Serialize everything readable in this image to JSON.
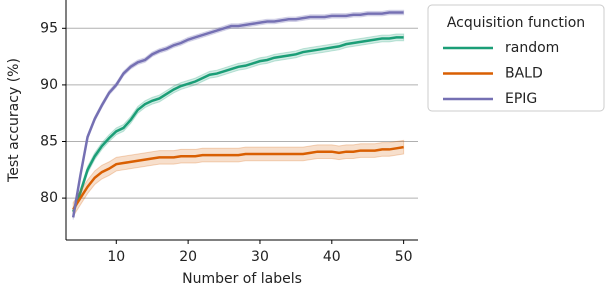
{
  "chart_data": {
    "type": "line",
    "xlabel": "Number of labels",
    "ylabel": "Test accuracy (%)",
    "legend_title": "Acquisition function",
    "legend": "outside-right",
    "grid": "y",
    "x": [
      4,
      5,
      6,
      7,
      8,
      9,
      10,
      11,
      12,
      13,
      14,
      15,
      16,
      17,
      18,
      19,
      20,
      21,
      22,
      23,
      24,
      25,
      26,
      27,
      28,
      29,
      30,
      31,
      32,
      33,
      34,
      35,
      36,
      37,
      38,
      39,
      40,
      41,
      42,
      43,
      44,
      45,
      46,
      47,
      48,
      49,
      50
    ],
    "xlim": [
      3,
      52
    ],
    "xticks": [
      10,
      20,
      30,
      40,
      50
    ],
    "ylim": [
      76.3,
      97.5
    ],
    "yticks": [
      80,
      85,
      90,
      95
    ],
    "series": [
      {
        "name": "random",
        "color": "#1b9e77",
        "error": 0.3,
        "values": [
          78.8,
          80.5,
          82.5,
          83.7,
          84.6,
          85.3,
          85.9,
          86.2,
          86.9,
          87.8,
          88.3,
          88.6,
          88.8,
          89.2,
          89.6,
          89.9,
          90.1,
          90.3,
          90.6,
          90.9,
          91.0,
          91.2,
          91.4,
          91.6,
          91.7,
          91.9,
          92.1,
          92.2,
          92.4,
          92.5,
          92.6,
          92.7,
          92.9,
          93.0,
          93.1,
          93.2,
          93.3,
          93.4,
          93.6,
          93.7,
          93.8,
          93.9,
          94.0,
          94.1,
          94.1,
          94.2,
          94.2
        ]
      },
      {
        "name": "BALD",
        "color": "#d95f02",
        "error": 0.6,
        "values": [
          79.0,
          80.0,
          81.0,
          81.8,
          82.3,
          82.6,
          83.0,
          83.1,
          83.2,
          83.3,
          83.4,
          83.5,
          83.6,
          83.6,
          83.6,
          83.7,
          83.7,
          83.7,
          83.8,
          83.8,
          83.8,
          83.8,
          83.8,
          83.8,
          83.9,
          83.9,
          83.9,
          83.9,
          83.9,
          83.9,
          83.9,
          83.9,
          83.9,
          84.0,
          84.1,
          84.1,
          84.1,
          84.0,
          84.1,
          84.1,
          84.2,
          84.2,
          84.2,
          84.3,
          84.3,
          84.4,
          84.5
        ]
      },
      {
        "name": "EPIG",
        "color": "#7570b3",
        "error": 0.2,
        "values": [
          78.3,
          82.0,
          85.4,
          87.0,
          88.2,
          89.3,
          90.0,
          91.0,
          91.6,
          92.0,
          92.2,
          92.7,
          93.0,
          93.2,
          93.5,
          93.7,
          94.0,
          94.2,
          94.4,
          94.6,
          94.8,
          95.0,
          95.2,
          95.2,
          95.3,
          95.4,
          95.5,
          95.6,
          95.6,
          95.7,
          95.8,
          95.8,
          95.9,
          96.0,
          96.0,
          96.0,
          96.1,
          96.1,
          96.1,
          96.2,
          96.2,
          96.3,
          96.3,
          96.3,
          96.4,
          96.4,
          96.4
        ]
      }
    ]
  }
}
